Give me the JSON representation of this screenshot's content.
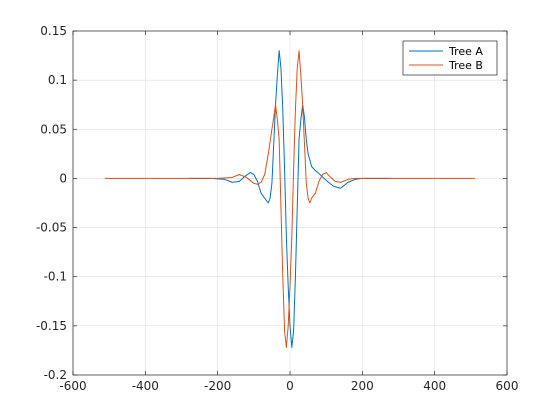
{
  "chart_data": {
    "type": "line",
    "title": "",
    "xlabel": "",
    "ylabel": "",
    "xlim": [
      -600,
      600
    ],
    "ylim": [
      -0.2,
      0.15
    ],
    "x_ticks": [
      -600,
      -400,
      -200,
      0,
      200,
      400,
      600
    ],
    "x_tick_labels": [
      "-600",
      "-400",
      "-200",
      "0",
      "200",
      "400",
      "600"
    ],
    "y_ticks": [
      0.15,
      0.1,
      0.05,
      0,
      -0.05,
      -0.1,
      -0.15,
      -0.2
    ],
    "y_tick_labels": [
      "0.15",
      "0.1",
      "0.05",
      "0",
      "-0.05",
      "-0.1",
      "-0.15",
      "-0.2"
    ],
    "grid": true,
    "legend_position": "top-right",
    "series": [
      {
        "name": "Tree A",
        "color": "#0072BD",
        "x": [
          -280,
          -220,
          -180,
          -160,
          -140,
          -125,
          -110,
          -100,
          -90,
          -80,
          -70,
          -60,
          -55,
          -50,
          -45,
          -40,
          -35,
          -30,
          -25,
          -20,
          -15,
          -10,
          -5,
          0,
          5,
          10,
          15,
          20,
          25,
          30,
          35,
          40,
          45,
          50,
          60,
          70,
          80,
          100,
          120,
          140,
          160,
          180,
          200,
          240,
          280
        ],
        "y": [
          0,
          0,
          -0.001,
          -0.004,
          -0.003,
          0.002,
          0.006,
          0.004,
          -0.003,
          -0.015,
          -0.02,
          -0.025,
          -0.02,
          -0.005,
          0.035,
          0.075,
          0.105,
          0.13,
          0.112,
          0.07,
          0.01,
          -0.06,
          -0.11,
          -0.15,
          -0.172,
          -0.155,
          -0.1,
          -0.03,
          0.04,
          0.06,
          0.075,
          0.062,
          0.04,
          0.025,
          0.012,
          0.008,
          0.005,
          -0.002,
          -0.008,
          -0.01,
          -0.004,
          -0.001,
          0,
          0,
          0
        ]
      },
      {
        "name": "Tree B",
        "color": "#D95319",
        "x": [
          -512,
          -300,
          -200,
          -160,
          -140,
          -120,
          -100,
          -90,
          -80,
          -70,
          -60,
          -50,
          -45,
          -40,
          -35,
          -30,
          -25,
          -20,
          -15,
          -10,
          -5,
          0,
          5,
          10,
          15,
          20,
          25,
          30,
          35,
          40,
          45,
          50,
          55,
          60,
          70,
          80,
          90,
          100,
          110,
          125,
          140,
          160,
          180,
          220,
          300,
          512
        ],
        "y": [
          0,
          0,
          0,
          0.001,
          0.004,
          0.001,
          -0.005,
          -0.006,
          -0.004,
          0.004,
          0.025,
          0.05,
          0.062,
          0.075,
          0.06,
          0.04,
          -0.03,
          -0.1,
          -0.155,
          -0.172,
          -0.15,
          -0.11,
          -0.06,
          0.01,
          0.07,
          0.112,
          0.13,
          0.105,
          0.075,
          0.035,
          -0.005,
          -0.02,
          -0.025,
          -0.02,
          -0.015,
          -0.003,
          0.004,
          0.006,
          0.002,
          -0.003,
          -0.004,
          -0.001,
          0,
          0,
          0,
          0
        ]
      }
    ]
  }
}
